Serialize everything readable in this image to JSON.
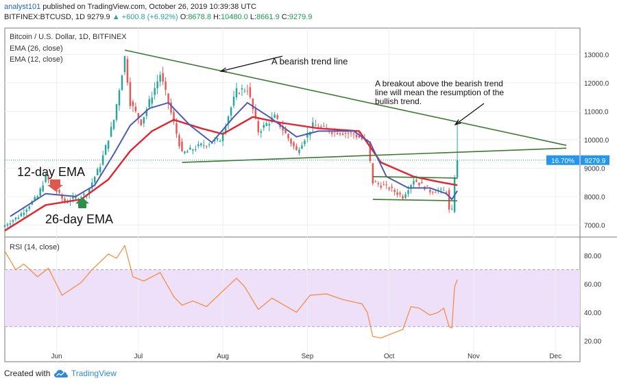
{
  "header": {
    "author": "analyst101",
    "published": " published on TradingView.com, October 26, 2019 10:39:38 UTC",
    "symbol": "BITFINEX:BTCUSD, 1D 9279.9",
    "change": "▲ +600.8 (+6.92%)",
    "o_label": "O:",
    "o_value": "8678.8",
    "h_label": "H:",
    "h_value": "10480.0",
    "l_label": "L:",
    "l_value": "8661.9",
    "c_label": "C:",
    "c_value": "9279.9"
  },
  "legend": {
    "title": "Bitcoin / U.S. Dollar, 1D, BITFINEX",
    "ema26": "EMA (26, close)",
    "ema12": "EMA (12, close)",
    "rsi": "RSI (14, close)"
  },
  "annotations": {
    "bearish": "A bearish trend line",
    "breakout_1": "A breakout above the bearish trend",
    "breakout_2": "line will mean the resumption of the",
    "breakout_3": "bullish trend.",
    "ema12": "12-day EMA",
    "ema26": "26-day EMA"
  },
  "price_badge": {
    "pct": "16.70%",
    "price": "9279.9"
  },
  "footer": {
    "created": "Created with",
    "brand": "TradingView"
  },
  "colors": {
    "up": "#26a69a",
    "down": "#ef5350",
    "ema12": "#4a5bb5",
    "ema26": "#e8212e",
    "trend": "#3a7a2e",
    "rsi": "#f4883a",
    "rsi_band": "#efe0fa",
    "price_badge": "#2196f3"
  },
  "chart_data": [
    {
      "type": "candlestick",
      "title": "Bitcoin / U.S. Dollar, 1D, BITFINEX",
      "x_ticks": [
        "Jun",
        "Jul",
        "Aug",
        "Sep",
        "Oct",
        "Nov",
        "Dec"
      ],
      "x_tick_dates": [
        "2019-06-01",
        "2019-07-01",
        "2019-08-01",
        "2019-09-01",
        "2019-10-01",
        "2019-11-01",
        "2019-12-01"
      ],
      "x_range": [
        "2019-05-13",
        "2019-12-10"
      ],
      "y_ticks": [
        7000,
        8000,
        9000,
        10000,
        11000,
        12000,
        13000
      ],
      "ylim": [
        6600,
        13900
      ],
      "last_price": 9279.9,
      "key_closes": [
        {
          "date": "2019-05-13",
          "close": 7000
        },
        {
          "date": "2019-05-18",
          "close": 7300
        },
        {
          "date": "2019-05-25",
          "close": 8000
        },
        {
          "date": "2019-05-28",
          "close": 8700
        },
        {
          "date": "2019-06-04",
          "close": 7800
        },
        {
          "date": "2019-06-12",
          "close": 8100
        },
        {
          "date": "2019-06-17",
          "close": 9100
        },
        {
          "date": "2019-06-22",
          "close": 10700
        },
        {
          "date": "2019-06-26",
          "close": 12900
        },
        {
          "date": "2019-06-28",
          "close": 11300
        },
        {
          "date": "2019-07-02",
          "close": 10600
        },
        {
          "date": "2019-07-09",
          "close": 12300
        },
        {
          "date": "2019-07-12",
          "close": 11300
        },
        {
          "date": "2019-07-17",
          "close": 9500
        },
        {
          "date": "2019-07-24",
          "close": 9800
        },
        {
          "date": "2019-07-31",
          "close": 10000
        },
        {
          "date": "2019-08-06",
          "close": 11700
        },
        {
          "date": "2019-08-10",
          "close": 11800
        },
        {
          "date": "2019-08-14",
          "close": 10300
        },
        {
          "date": "2019-08-20",
          "close": 10800
        },
        {
          "date": "2019-08-28",
          "close": 9600
        },
        {
          "date": "2019-09-03",
          "close": 10500
        },
        {
          "date": "2019-09-10",
          "close": 10300
        },
        {
          "date": "2019-09-18",
          "close": 10200
        },
        {
          "date": "2019-09-23",
          "close": 9900
        },
        {
          "date": "2019-09-25",
          "close": 8500
        },
        {
          "date": "2019-10-01",
          "close": 8300
        },
        {
          "date": "2019-10-06",
          "close": 8000
        },
        {
          "date": "2019-10-10",
          "close": 8600
        },
        {
          "date": "2019-10-16",
          "close": 8200
        },
        {
          "date": "2019-10-22",
          "close": 8200
        },
        {
          "date": "2019-10-23",
          "close": 7500
        },
        {
          "date": "2019-10-24",
          "close": 7500
        },
        {
          "date": "2019-10-25",
          "close": 8700
        },
        {
          "date": "2019-10-26",
          "close": 9280
        }
      ],
      "ema12": [
        {
          "date": "2019-05-15",
          "value": 7300
        },
        {
          "date": "2019-05-28",
          "value": 8100
        },
        {
          "date": "2019-06-08",
          "value": 8000
        },
        {
          "date": "2019-06-15",
          "value": 8400
        },
        {
          "date": "2019-06-22",
          "value": 9500
        },
        {
          "date": "2019-06-28",
          "value": 10500
        },
        {
          "date": "2019-07-05",
          "value": 11100
        },
        {
          "date": "2019-07-12",
          "value": 11300
        },
        {
          "date": "2019-07-20",
          "value": 10500
        },
        {
          "date": "2019-07-28",
          "value": 9900
        },
        {
          "date": "2019-08-05",
          "value": 10800
        },
        {
          "date": "2019-08-10",
          "value": 11300
        },
        {
          "date": "2019-08-18",
          "value": 10800
        },
        {
          "date": "2019-08-28",
          "value": 10100
        },
        {
          "date": "2019-09-05",
          "value": 10300
        },
        {
          "date": "2019-09-18",
          "value": 10300
        },
        {
          "date": "2019-09-24",
          "value": 9900
        },
        {
          "date": "2019-09-30",
          "value": 8700
        },
        {
          "date": "2019-10-08",
          "value": 8300
        },
        {
          "date": "2019-10-16",
          "value": 8300
        },
        {
          "date": "2019-10-22",
          "value": 8100
        },
        {
          "date": "2019-10-24",
          "value": 7900
        },
        {
          "date": "2019-10-26",
          "value": 8200
        }
      ],
      "ema26": [
        {
          "date": "2019-05-13",
          "value": 6800
        },
        {
          "date": "2019-05-28",
          "value": 7700
        },
        {
          "date": "2019-06-10",
          "value": 7900
        },
        {
          "date": "2019-06-20",
          "value": 8600
        },
        {
          "date": "2019-06-28",
          "value": 9600
        },
        {
          "date": "2019-07-06",
          "value": 10300
        },
        {
          "date": "2019-07-14",
          "value": 10700
        },
        {
          "date": "2019-07-24",
          "value": 10400
        },
        {
          "date": "2019-08-01",
          "value": 10200
        },
        {
          "date": "2019-08-12",
          "value": 10800
        },
        {
          "date": "2019-08-22",
          "value": 10600
        },
        {
          "date": "2019-09-05",
          "value": 10400
        },
        {
          "date": "2019-09-20",
          "value": 10300
        },
        {
          "date": "2019-09-28",
          "value": 9200
        },
        {
          "date": "2019-10-10",
          "value": 8700
        },
        {
          "date": "2019-10-20",
          "value": 8500
        },
        {
          "date": "2019-10-26",
          "value": 8400
        }
      ],
      "trendlines": [
        {
          "name": "bearish",
          "from": {
            "date": "2019-06-26",
            "value": 13150
          },
          "to": {
            "date": "2019-12-05",
            "value": 9800
          }
        },
        {
          "name": "support",
          "from": {
            "date": "2019-07-17",
            "value": 9200
          },
          "to": {
            "date": "2019-12-05",
            "value": 9700
          }
        },
        {
          "name": "channel-top",
          "from": {
            "date": "2019-09-25",
            "value": 8700
          },
          "to": {
            "date": "2019-10-26",
            "value": 8650
          }
        },
        {
          "name": "channel-bottom",
          "from": {
            "date": "2019-09-25",
            "value": 7900
          },
          "to": {
            "date": "2019-10-26",
            "value": 7850
          }
        }
      ]
    },
    {
      "type": "line",
      "title": "RSI (14, close)",
      "y_ticks": [
        20,
        40,
        60,
        80
      ],
      "ylim": [
        13,
        92
      ],
      "band": [
        30,
        70
      ],
      "values": [
        {
          "date": "2019-05-13",
          "value": 83
        },
        {
          "date": "2019-05-17",
          "value": 70
        },
        {
          "date": "2019-05-20",
          "value": 74
        },
        {
          "date": "2019-05-25",
          "value": 65
        },
        {
          "date": "2019-05-29",
          "value": 71
        },
        {
          "date": "2019-06-03",
          "value": 52
        },
        {
          "date": "2019-06-10",
          "value": 61
        },
        {
          "date": "2019-06-14",
          "value": 70
        },
        {
          "date": "2019-06-20",
          "value": 81
        },
        {
          "date": "2019-06-23",
          "value": 78
        },
        {
          "date": "2019-06-26",
          "value": 87
        },
        {
          "date": "2019-06-29",
          "value": 65
        },
        {
          "date": "2019-07-03",
          "value": 62
        },
        {
          "date": "2019-07-09",
          "value": 68
        },
        {
          "date": "2019-07-14",
          "value": 51
        },
        {
          "date": "2019-07-17",
          "value": 45
        },
        {
          "date": "2019-07-21",
          "value": 48
        },
        {
          "date": "2019-07-26",
          "value": 44
        },
        {
          "date": "2019-08-01",
          "value": 55
        },
        {
          "date": "2019-08-06",
          "value": 64
        },
        {
          "date": "2019-08-09",
          "value": 58
        },
        {
          "date": "2019-08-14",
          "value": 42
        },
        {
          "date": "2019-08-19",
          "value": 50
        },
        {
          "date": "2019-08-28",
          "value": 40
        },
        {
          "date": "2019-09-02",
          "value": 52
        },
        {
          "date": "2019-09-08",
          "value": 53
        },
        {
          "date": "2019-09-14",
          "value": 49
        },
        {
          "date": "2019-09-21",
          "value": 46
        },
        {
          "date": "2019-09-23",
          "value": 40
        },
        {
          "date": "2019-09-25",
          "value": 23
        },
        {
          "date": "2019-09-28",
          "value": 22
        },
        {
          "date": "2019-10-02",
          "value": 25
        },
        {
          "date": "2019-10-06",
          "value": 28
        },
        {
          "date": "2019-10-09",
          "value": 44
        },
        {
          "date": "2019-10-12",
          "value": 43
        },
        {
          "date": "2019-10-16",
          "value": 38
        },
        {
          "date": "2019-10-19",
          "value": 40
        },
        {
          "date": "2019-10-21",
          "value": 43
        },
        {
          "date": "2019-10-23",
          "value": 30
        },
        {
          "date": "2019-10-24",
          "value": 29
        },
        {
          "date": "2019-10-25",
          "value": 58
        },
        {
          "date": "2019-10-26",
          "value": 63
        }
      ]
    }
  ]
}
